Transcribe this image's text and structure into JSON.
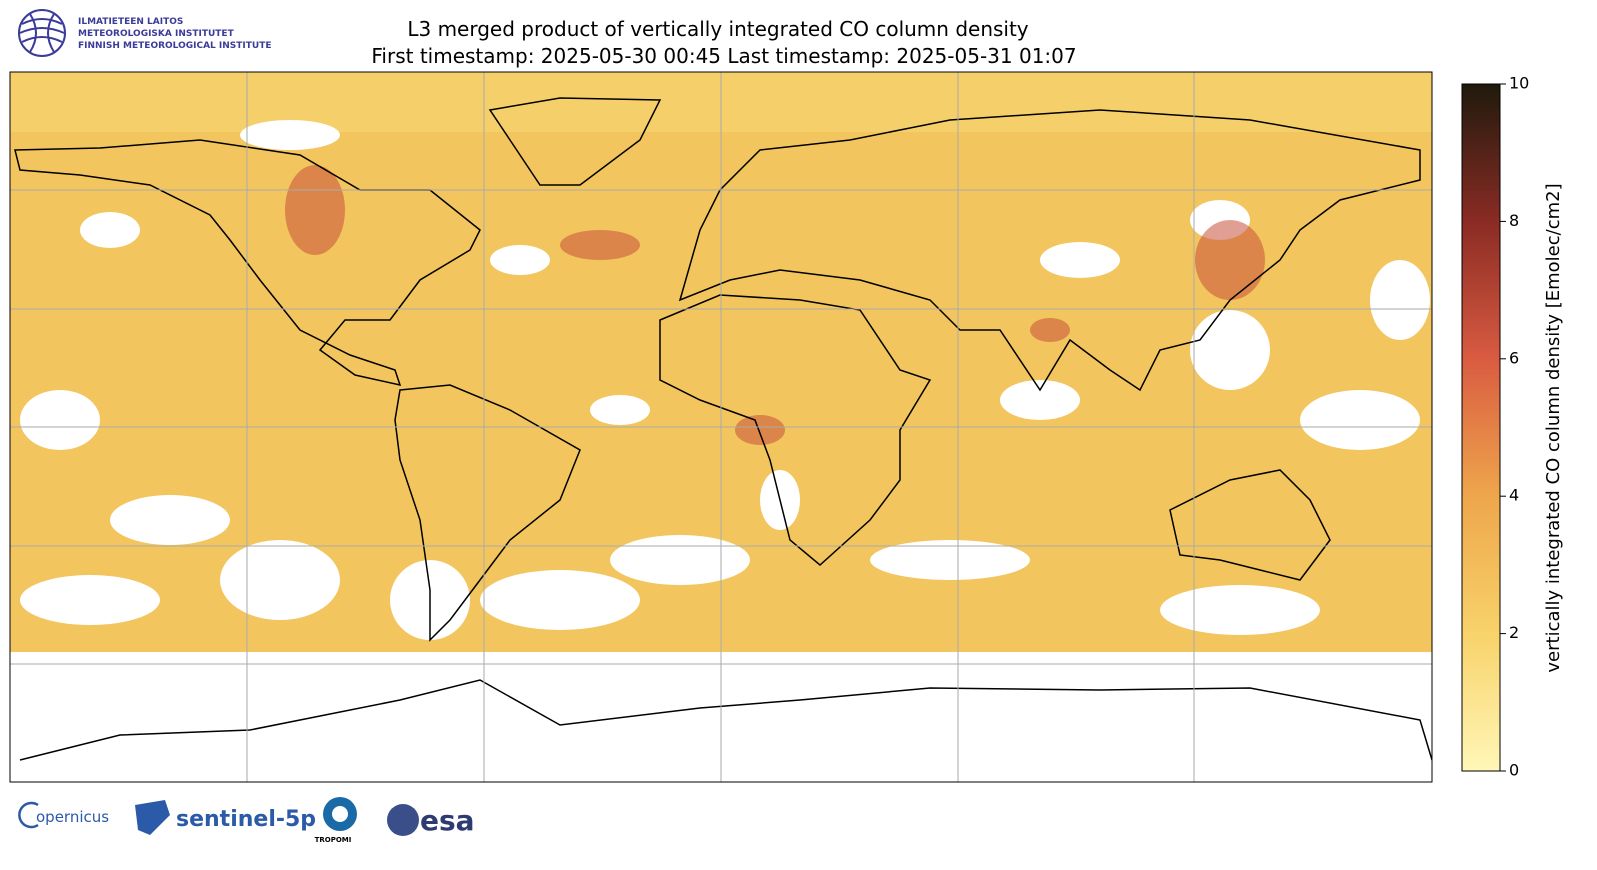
{
  "header": {
    "title": "L3 merged product of vertically integrated CO column density",
    "subtitle": "First timestamp: 2025-05-30 00:45   Last timestamp: 2025-05-31 01:07"
  },
  "institute": {
    "lines": [
      "ILMATIETEEN LAITOS",
      "METEOROLOGISKA INSTITUTET",
      "FINNISH METEOROLOGICAL INSTITUTE"
    ]
  },
  "colorbar": {
    "label": "vertically integrated CO column density [Emolec/cm2]",
    "lim": [
      0,
      10
    ],
    "ticks": [
      0,
      2,
      4,
      6,
      8,
      10
    ],
    "colors": [
      "#fff7b8",
      "#f8d26a",
      "#eea64c",
      "#d95b41",
      "#8a2b24",
      "#1f1a0c"
    ]
  },
  "logos": {
    "copernicus": "opernicus",
    "sentinel": "sentinel-5p",
    "tropomi": "TROPOMI",
    "esa": "esa"
  }
}
